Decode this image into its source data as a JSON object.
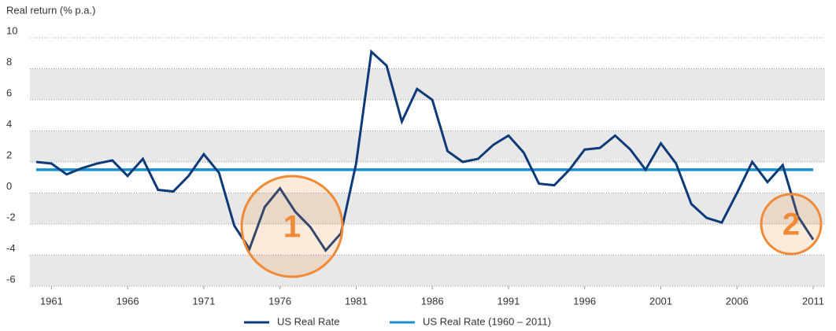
{
  "chart_data": {
    "type": "line",
    "y_label": "Real return (% p.a.)",
    "xlim": [
      1960,
      2011
    ],
    "xticks": [
      1961,
      1966,
      1971,
      1976,
      1981,
      1986,
      1991,
      1996,
      2001,
      2006,
      2011
    ],
    "ylim": [
      -6,
      10
    ],
    "yticks": [
      -6,
      -4,
      -2,
      0,
      2,
      4,
      6,
      8,
      10
    ],
    "grid": true,
    "series": [
      {
        "name": "US Real Rate",
        "color": "#0d3a78",
        "x": [
          1960,
          1961,
          1962,
          1963,
          1964,
          1965,
          1966,
          1967,
          1968,
          1969,
          1970,
          1971,
          1972,
          1973,
          1974,
          1975,
          1976,
          1977,
          1978,
          1979,
          1980,
          1981,
          1982,
          1983,
          1984,
          1985,
          1986,
          1987,
          1988,
          1989,
          1990,
          1991,
          1992,
          1993,
          1994,
          1995,
          1996,
          1997,
          1998,
          1999,
          2000,
          2001,
          2002,
          2003,
          2004,
          2005,
          2006,
          2007,
          2008,
          2009,
          2010,
          2011
        ],
        "values": [
          2.0,
          1.9,
          1.2,
          1.6,
          1.9,
          2.1,
          1.1,
          2.2,
          0.2,
          0.1,
          1.1,
          2.5,
          1.3,
          -2.1,
          -3.6,
          -0.9,
          0.3,
          -1.2,
          -2.2,
          -3.7,
          -2.6,
          1.9,
          9.1,
          8.2,
          4.6,
          6.7,
          6.0,
          2.7,
          2.0,
          2.2,
          3.1,
          3.7,
          2.6,
          0.6,
          0.5,
          1.5,
          2.8,
          2.9,
          3.7,
          2.8,
          1.5,
          3.2,
          1.9,
          -0.7,
          -1.6,
          -1.9,
          0.0,
          2.0,
          0.7,
          1.8,
          -1.5,
          -3.0
        ]
      },
      {
        "name": "US Real Rate (1960 – 2011)",
        "color": "#1a8fd0",
        "x": [
          1960,
          2011
        ],
        "values": [
          1.5,
          1.5
        ]
      }
    ],
    "annotations": [
      "1",
      "2"
    ]
  }
}
